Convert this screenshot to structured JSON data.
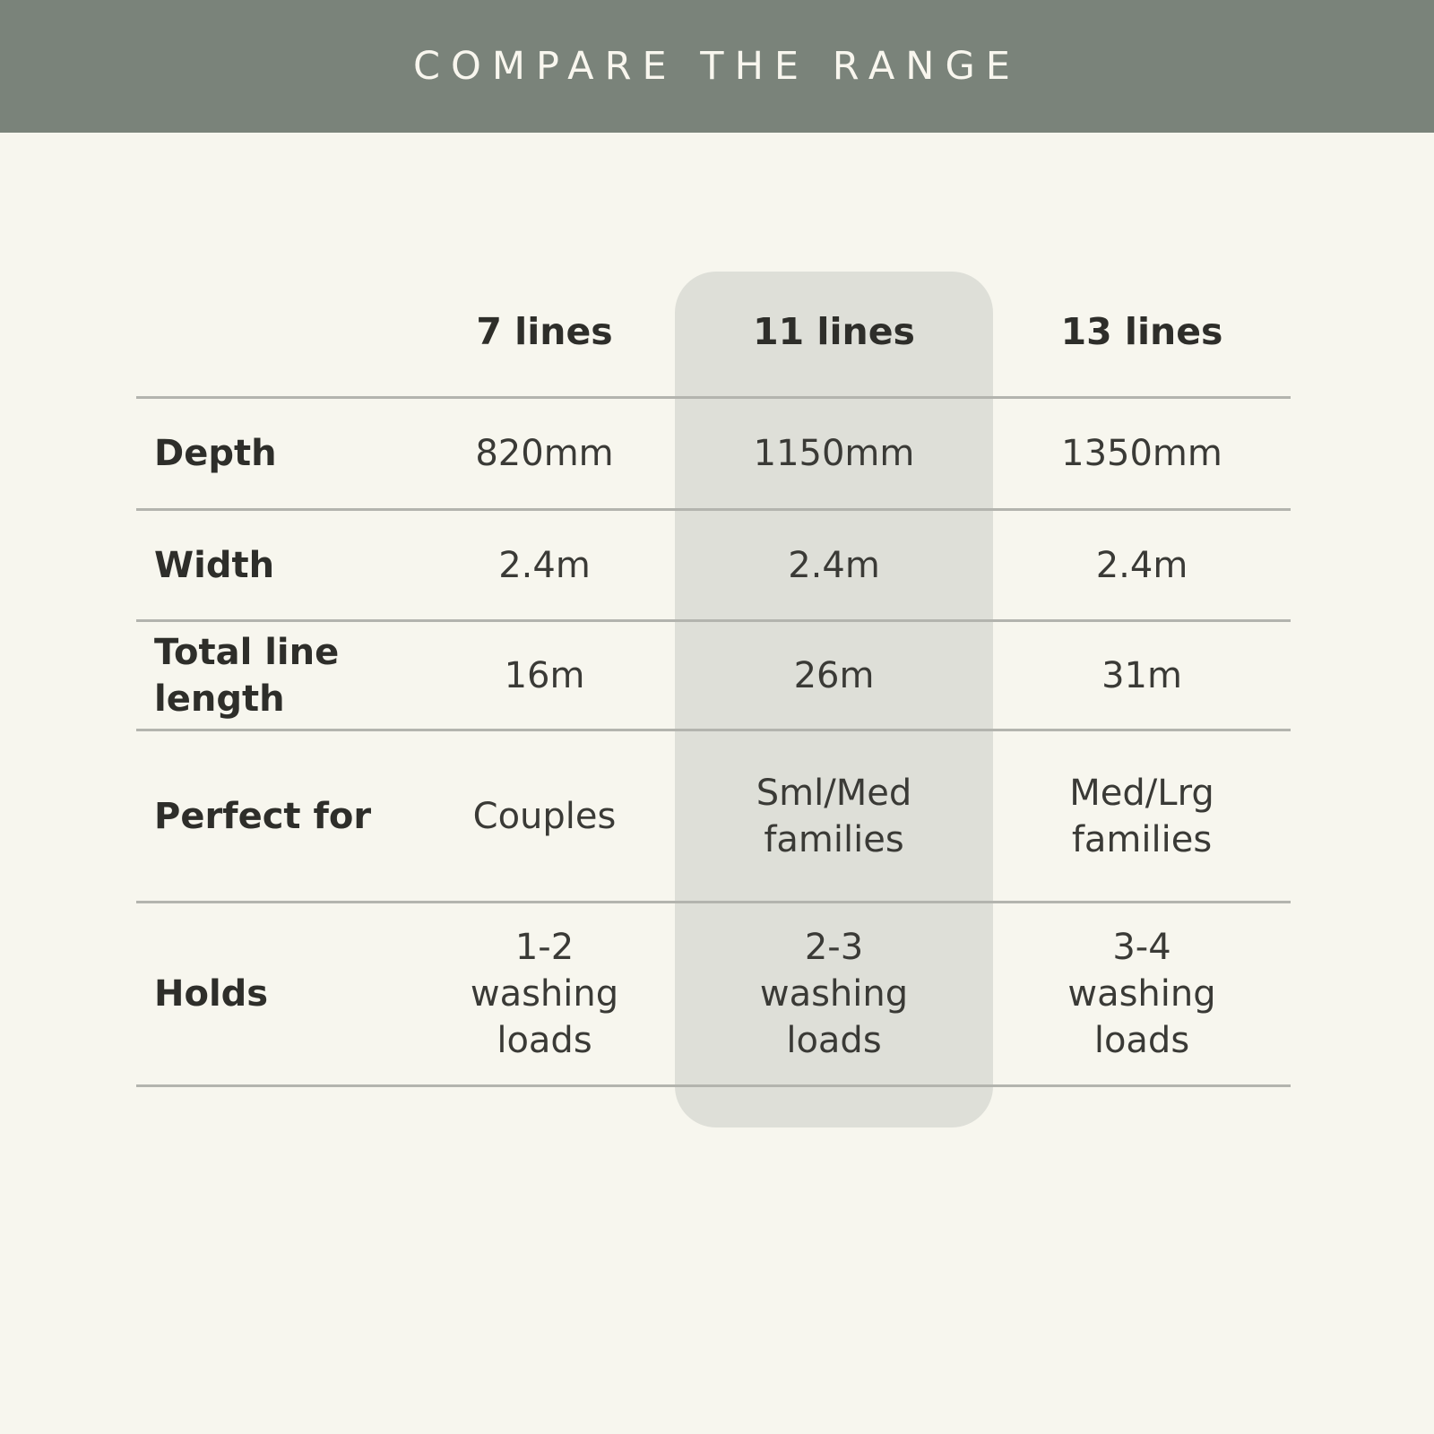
{
  "banner": {
    "title": "COMPARE THE RANGE",
    "bg_color": "#7a837a",
    "text_color": "#f8f6ee"
  },
  "table": {
    "column_headers": [
      "7 lines",
      "11 lines",
      "13 lines"
    ],
    "highlighted_column": "11 lines",
    "highlighted_column_index": 1,
    "rows": [
      {
        "label": "Depth",
        "values": [
          "820mm",
          "1150mm",
          "1350mm"
        ]
      },
      {
        "label": "Width",
        "values": [
          "2.4m",
          "2.4m",
          "2.4m"
        ]
      },
      {
        "label": "Total line length",
        "values": [
          "16m",
          "26m",
          "31m"
        ]
      },
      {
        "label": "Perfect for",
        "values": [
          "Couples",
          "Sml/Med\nfamilies",
          "Med/Lrg\nfamilies"
        ]
      },
      {
        "label": "Holds",
        "values": [
          "1-2\nwashing\nloads",
          "2-3\nwashing\nloads",
          "3-4\nwashing\nloads"
        ]
      }
    ],
    "colors": {
      "background": "#f7f6ee",
      "highlight": "#dedfd8",
      "divider": "#b3b4ae",
      "label_text": "#2e2e2a",
      "value_text": "#3a3a36"
    }
  },
  "chart_data": {
    "type": "table",
    "title": "COMPARE THE RANGE",
    "columns": [
      "",
      "7 lines",
      "11 lines",
      "13 lines"
    ],
    "rows": [
      [
        "Depth",
        "820mm",
        "1150mm",
        "1350mm"
      ],
      [
        "Width",
        "2.4m",
        "2.4m",
        "2.4m"
      ],
      [
        "Total line length",
        "16m",
        "26m",
        "31m"
      ],
      [
        "Perfect for",
        "Couples",
        "Sml/Med families",
        "Med/Lrg families"
      ],
      [
        "Holds",
        "1-2 washing loads",
        "2-3 washing loads",
        "3-4 washing loads"
      ]
    ],
    "highlighted_column": "11 lines",
    "legend_position": "none",
    "grid": "horizontal-dividers"
  }
}
